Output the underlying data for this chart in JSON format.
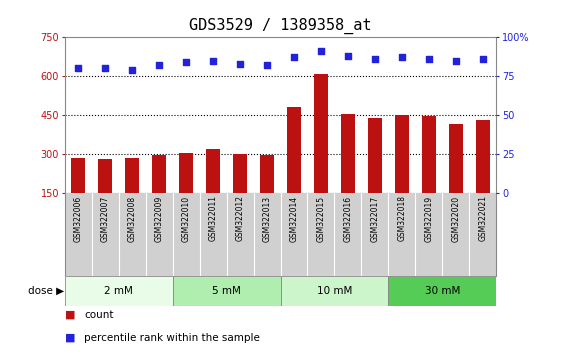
{
  "title": "GDS3529 / 1389358_at",
  "samples": [
    "GSM322006",
    "GSM322007",
    "GSM322008",
    "GSM322009",
    "GSM322010",
    "GSM322011",
    "GSM322012",
    "GSM322013",
    "GSM322014",
    "GSM322015",
    "GSM322016",
    "GSM322017",
    "GSM322018",
    "GSM322019",
    "GSM322020",
    "GSM322021"
  ],
  "counts": [
    285,
    280,
    285,
    295,
    305,
    320,
    300,
    295,
    480,
    610,
    455,
    440,
    450,
    445,
    415,
    430
  ],
  "percentiles": [
    80,
    80,
    79,
    82,
    84,
    85,
    83,
    82,
    87,
    91,
    88,
    86,
    87,
    86,
    85,
    86
  ],
  "doses": [
    {
      "label": "2 mM",
      "start": 0,
      "end": 4,
      "color": "#e8fce8"
    },
    {
      "label": "5 mM",
      "start": 4,
      "end": 8,
      "color": "#b8f0b8"
    },
    {
      "label": "10 mM",
      "start": 8,
      "end": 12,
      "color": "#ccf5cc"
    },
    {
      "label": "30 mM",
      "start": 12,
      "end": 16,
      "color": "#66dd66"
    }
  ],
  "bar_color": "#bb1111",
  "dot_color": "#2222dd",
  "ylim_left": [
    150,
    750
  ],
  "ylim_right": [
    0,
    100
  ],
  "yticks_left": [
    150,
    300,
    450,
    600,
    750
  ],
  "yticks_right": [
    0,
    25,
    50,
    75,
    100
  ],
  "hlines": [
    300,
    450,
    600
  ],
  "label_bg": "#d0d0d0",
  "title_fontsize": 11,
  "legend_count_label": "count",
  "legend_pct_label": "percentile rank within the sample",
  "dose_border_color": "#aaaaaa"
}
